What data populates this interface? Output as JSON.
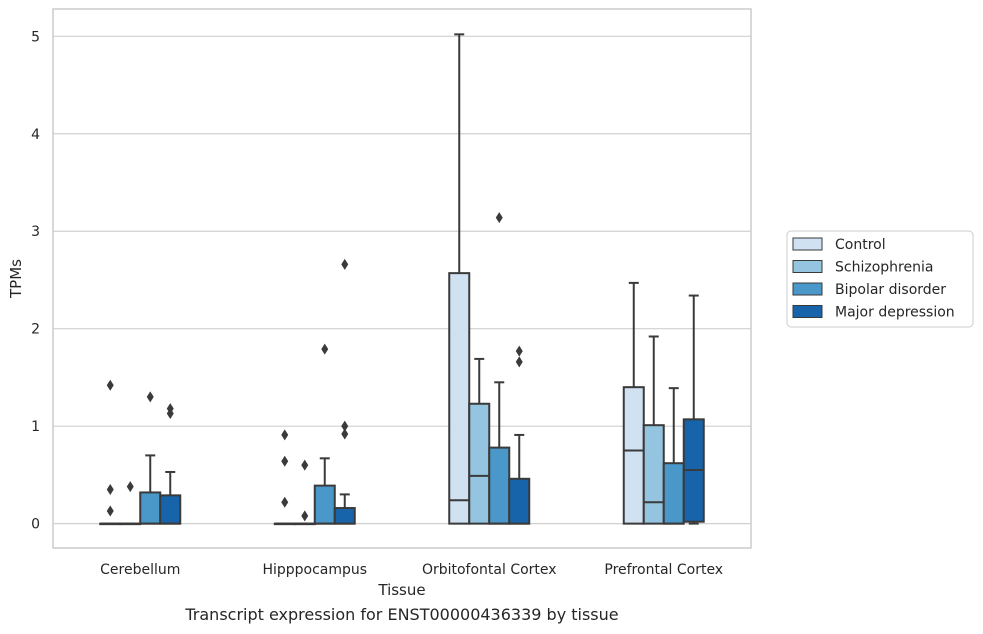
{
  "caption": "Transcript expression for ENST00000436339 by tissue",
  "chart_data": {
    "type": "box",
    "xlabel": "Tissue",
    "ylabel": "TPMs",
    "ylim": [
      -0.25,
      5.28
    ],
    "yticks": [
      0,
      1,
      2,
      3,
      4,
      5
    ],
    "grid": true,
    "legend_position": "right",
    "categories": [
      "Cerebellum",
      "Hipppocampus",
      "Orbitofontal Cortex",
      "Prefrontal Cortex"
    ],
    "series": [
      {
        "name": "Control",
        "color": "#d0e1f2",
        "boxes": [
          {
            "q1": 0,
            "median": 0,
            "q3": 0,
            "whisker_low": 0,
            "whisker_high": 0,
            "outliers": [
              1.42,
              0.35,
              0.13
            ]
          },
          {
            "q1": 0,
            "median": 0,
            "q3": 0,
            "whisker_low": 0,
            "whisker_high": 0,
            "outliers": [
              0.91,
              0.64,
              0.22
            ]
          },
          {
            "q1": 0,
            "median": 0.24,
            "q3": 2.57,
            "whisker_low": 0,
            "whisker_high": 5.02,
            "outliers": []
          },
          {
            "q1": 0,
            "median": 0.75,
            "q3": 1.4,
            "whisker_low": 0,
            "whisker_high": 2.47,
            "outliers": []
          }
        ]
      },
      {
        "name": "Schizophrenia",
        "color": "#94c4df",
        "boxes": [
          {
            "q1": 0,
            "median": 0,
            "q3": 0,
            "whisker_low": 0,
            "whisker_high": 0,
            "outliers": [
              0.38
            ]
          },
          {
            "q1": 0,
            "median": 0,
            "q3": 0,
            "whisker_low": 0,
            "whisker_high": 0,
            "outliers": [
              0.6,
              0.08
            ]
          },
          {
            "q1": 0,
            "median": 0.49,
            "q3": 1.23,
            "whisker_low": 0,
            "whisker_high": 1.69,
            "outliers": []
          },
          {
            "q1": 0,
            "median": 0.22,
            "q3": 1.01,
            "whisker_low": 0,
            "whisker_high": 1.92,
            "outliers": []
          }
        ]
      },
      {
        "name": "Bipolar disorder",
        "color": "#4a98c9",
        "boxes": [
          {
            "q1": 0,
            "median": 0,
            "q3": 0.32,
            "whisker_low": 0,
            "whisker_high": 0.7,
            "outliers": [
              1.3
            ]
          },
          {
            "q1": 0,
            "median": 0,
            "q3": 0.39,
            "whisker_low": 0,
            "whisker_high": 0.67,
            "outliers": [
              1.79
            ]
          },
          {
            "q1": 0,
            "median": 0,
            "q3": 0.78,
            "whisker_low": 0,
            "whisker_high": 1.45,
            "outliers": [
              3.14
            ]
          },
          {
            "q1": 0,
            "median": 0,
            "q3": 0.62,
            "whisker_low": 0,
            "whisker_high": 1.39,
            "outliers": []
          }
        ]
      },
      {
        "name": "Major depression",
        "color": "#1764ab",
        "boxes": [
          {
            "q1": 0,
            "median": 0,
            "q3": 0.29,
            "whisker_low": 0,
            "whisker_high": 0.53,
            "outliers": [
              1.18,
              1.13
            ]
          },
          {
            "q1": 0,
            "median": 0,
            "q3": 0.16,
            "whisker_low": 0,
            "whisker_high": 0.3,
            "outliers": [
              2.66,
              1.0,
              0.92
            ]
          },
          {
            "q1": 0,
            "median": 0,
            "q3": 0.46,
            "whisker_low": 0,
            "whisker_high": 0.91,
            "outliers": [
              1.77,
              1.66
            ]
          },
          {
            "q1": 0.02,
            "median": 0.55,
            "q3": 1.07,
            "whisker_low": 0,
            "whisker_high": 2.34,
            "outliers": []
          }
        ]
      }
    ]
  }
}
